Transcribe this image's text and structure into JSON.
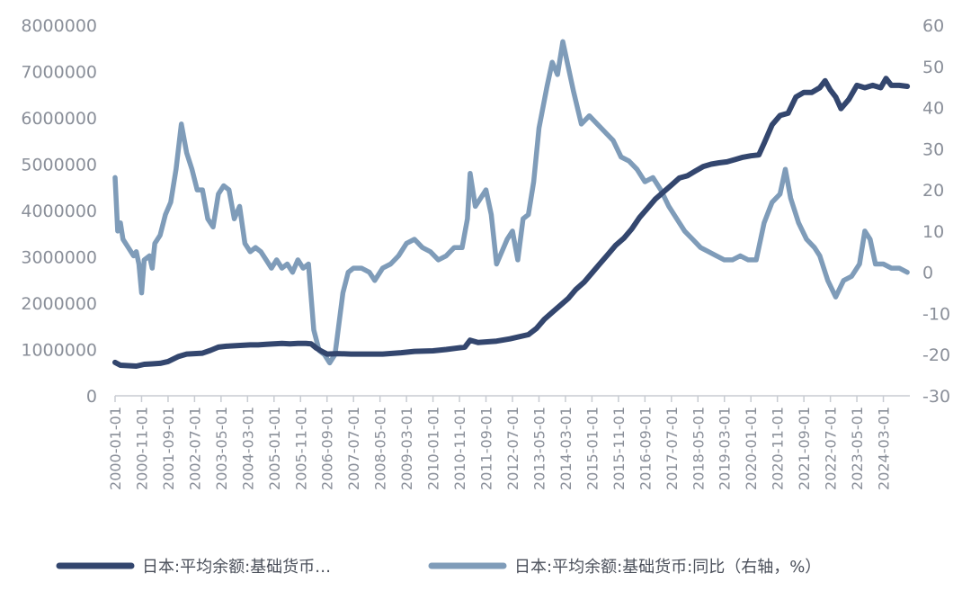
{
  "chart_data": {
    "type": "line",
    "title": "",
    "colors": {
      "series_left": "#33466e",
      "series_right": "#7f9cb9",
      "axis": "#c8ccd2",
      "text": "#8a8f99"
    },
    "left_axis": {
      "ylim": [
        0,
        8000000
      ],
      "ticks": [
        "0",
        "1000000",
        "2000000",
        "3000000",
        "4000000",
        "5000000",
        "6000000",
        "7000000",
        "8000000"
      ]
    },
    "right_axis": {
      "ylim": [
        -30,
        60
      ],
      "ticks": [
        "-30",
        "-20",
        "-10",
        "0",
        "10",
        "20",
        "30",
        "40",
        "50",
        "60"
      ]
    },
    "x_tick_labels": [
      "2000-01-01",
      "2000-11-01",
      "2001-09-01",
      "2002-07-01",
      "2003-05-01",
      "2004-03-01",
      "2005-01-01",
      "2005-11-01",
      "2006-09-01",
      "2007-07-01",
      "2008-05-01",
      "2009-03-01",
      "2010-01-01",
      "2010-11-01",
      "2011-09-01",
      "2012-07-01",
      "2013-05-01",
      "2014-03-01",
      "2015-01-01",
      "2015-11-01",
      "2016-09-01",
      "2017-07-01",
      "2018-05-01",
      "2019-03-01",
      "2020-01-01",
      "2020-11-01",
      "2021-09-01",
      "2022-07-01",
      "2023-05-01",
      "2024-03-01"
    ],
    "x_range": [
      "2000-01-01",
      "2025-01-01"
    ],
    "legend": {
      "placement": "bottom"
    },
    "series": [
      {
        "name": "日本:平均余额:基础货币…",
        "axis": "left",
        "points": [
          [
            "2000-01",
            720000
          ],
          [
            "2000-03",
            660000
          ],
          [
            "2000-06",
            650000
          ],
          [
            "2000-09",
            640000
          ],
          [
            "2000-12",
            680000
          ],
          [
            "2001-03",
            690000
          ],
          [
            "2001-06",
            700000
          ],
          [
            "2001-09",
            740000
          ],
          [
            "2002-01",
            850000
          ],
          [
            "2002-04",
            900000
          ],
          [
            "2002-07",
            910000
          ],
          [
            "2002-10",
            920000
          ],
          [
            "2003-01",
            980000
          ],
          [
            "2003-04",
            1050000
          ],
          [
            "2003-07",
            1070000
          ],
          [
            "2003-10",
            1080000
          ],
          [
            "2004-01",
            1090000
          ],
          [
            "2004-04",
            1100000
          ],
          [
            "2004-07",
            1100000
          ],
          [
            "2004-10",
            1110000
          ],
          [
            "2005-01",
            1120000
          ],
          [
            "2005-04",
            1130000
          ],
          [
            "2005-07",
            1120000
          ],
          [
            "2005-10",
            1130000
          ],
          [
            "2006-01",
            1130000
          ],
          [
            "2006-03",
            1120000
          ],
          [
            "2006-05",
            1030000
          ],
          [
            "2006-07",
            960000
          ],
          [
            "2006-09",
            900000
          ],
          [
            "2007-01",
            910000
          ],
          [
            "2007-06",
            900000
          ],
          [
            "2008-01",
            900000
          ],
          [
            "2008-06",
            900000
          ],
          [
            "2009-01",
            930000
          ],
          [
            "2009-06",
            960000
          ],
          [
            "2010-01",
            970000
          ],
          [
            "2010-06",
            1000000
          ],
          [
            "2011-01",
            1050000
          ],
          [
            "2011-03",
            1200000
          ],
          [
            "2011-06",
            1150000
          ],
          [
            "2012-01",
            1180000
          ],
          [
            "2012-06",
            1230000
          ],
          [
            "2013-01",
            1320000
          ],
          [
            "2013-04",
            1450000
          ],
          [
            "2013-07",
            1650000
          ],
          [
            "2013-10",
            1800000
          ],
          [
            "2014-01",
            1950000
          ],
          [
            "2014-04",
            2100000
          ],
          [
            "2014-07",
            2300000
          ],
          [
            "2014-10",
            2450000
          ],
          [
            "2015-01",
            2650000
          ],
          [
            "2015-04",
            2850000
          ],
          [
            "2015-07",
            3050000
          ],
          [
            "2015-10",
            3250000
          ],
          [
            "2016-01",
            3400000
          ],
          [
            "2016-04",
            3600000
          ],
          [
            "2016-07",
            3850000
          ],
          [
            "2016-10",
            4050000
          ],
          [
            "2017-01",
            4250000
          ],
          [
            "2017-04",
            4400000
          ],
          [
            "2017-07",
            4550000
          ],
          [
            "2017-10",
            4700000
          ],
          [
            "2018-01",
            4750000
          ],
          [
            "2018-04",
            4850000
          ],
          [
            "2018-07",
            4950000
          ],
          [
            "2018-10",
            5000000
          ],
          [
            "2019-01",
            5030000
          ],
          [
            "2019-04",
            5050000
          ],
          [
            "2019-07",
            5100000
          ],
          [
            "2019-10",
            5150000
          ],
          [
            "2020-01",
            5180000
          ],
          [
            "2020-04",
            5200000
          ],
          [
            "2020-06",
            5450000
          ],
          [
            "2020-09",
            5850000
          ],
          [
            "2020-12",
            6050000
          ],
          [
            "2021-03",
            6100000
          ],
          [
            "2021-06",
            6450000
          ],
          [
            "2021-09",
            6550000
          ],
          [
            "2021-12",
            6550000
          ],
          [
            "2022-03",
            6650000
          ],
          [
            "2022-05",
            6800000
          ],
          [
            "2022-07",
            6600000
          ],
          [
            "2022-09",
            6450000
          ],
          [
            "2022-11",
            6200000
          ],
          [
            "2023-02",
            6400000
          ],
          [
            "2023-05",
            6700000
          ],
          [
            "2023-08",
            6650000
          ],
          [
            "2023-11",
            6700000
          ],
          [
            "2024-02",
            6650000
          ],
          [
            "2024-04",
            6850000
          ],
          [
            "2024-06",
            6700000
          ],
          [
            "2024-09",
            6700000
          ],
          [
            "2024-12",
            6680000
          ]
        ]
      },
      {
        "name": "日本:平均余额:基础货币:同比（右轴，%）",
        "axis": "right",
        "points": [
          [
            "2000-01",
            23
          ],
          [
            "2000-02",
            10
          ],
          [
            "2000-03",
            12
          ],
          [
            "2000-04",
            8
          ],
          [
            "2000-06",
            6
          ],
          [
            "2000-08",
            4
          ],
          [
            "2000-09",
            5
          ],
          [
            "2000-10",
            2
          ],
          [
            "2000-11",
            -5
          ],
          [
            "2000-12",
            3
          ],
          [
            "2001-02",
            4
          ],
          [
            "2001-03",
            1
          ],
          [
            "2001-04",
            7
          ],
          [
            "2001-06",
            9
          ],
          [
            "2001-08",
            14
          ],
          [
            "2001-10",
            17
          ],
          [
            "2001-12",
            25
          ],
          [
            "2002-02",
            36
          ],
          [
            "2002-04",
            29
          ],
          [
            "2002-06",
            25
          ],
          [
            "2002-08",
            20
          ],
          [
            "2002-10",
            20
          ],
          [
            "2002-12",
            13
          ],
          [
            "2003-02",
            11
          ],
          [
            "2003-04",
            19
          ],
          [
            "2003-06",
            21
          ],
          [
            "2003-08",
            20
          ],
          [
            "2003-10",
            13
          ],
          [
            "2003-12",
            16
          ],
          [
            "2004-02",
            7
          ],
          [
            "2004-04",
            5
          ],
          [
            "2004-06",
            6
          ],
          [
            "2004-08",
            5
          ],
          [
            "2004-10",
            3
          ],
          [
            "2004-12",
            1
          ],
          [
            "2005-02",
            3
          ],
          [
            "2005-04",
            1
          ],
          [
            "2005-06",
            2
          ],
          [
            "2005-08",
            0
          ],
          [
            "2005-10",
            3
          ],
          [
            "2005-12",
            1
          ],
          [
            "2006-02",
            2
          ],
          [
            "2006-04",
            -14
          ],
          [
            "2006-06",
            -19
          ],
          [
            "2006-08",
            -20
          ],
          [
            "2006-10",
            -22
          ],
          [
            "2006-12",
            -20
          ],
          [
            "2007-03",
            -5
          ],
          [
            "2007-05",
            0
          ],
          [
            "2007-07",
            1
          ],
          [
            "2007-10",
            1
          ],
          [
            "2008-01",
            0
          ],
          [
            "2008-03",
            -2
          ],
          [
            "2008-06",
            1
          ],
          [
            "2008-09",
            2
          ],
          [
            "2008-12",
            4
          ],
          [
            "2009-03",
            7
          ],
          [
            "2009-06",
            8
          ],
          [
            "2009-09",
            6
          ],
          [
            "2009-12",
            5
          ],
          [
            "2010-03",
            3
          ],
          [
            "2010-06",
            4
          ],
          [
            "2010-09",
            6
          ],
          [
            "2010-12",
            6
          ],
          [
            "2011-02",
            13
          ],
          [
            "2011-03",
            24
          ],
          [
            "2011-05",
            16
          ],
          [
            "2011-07",
            18
          ],
          [
            "2011-09",
            20
          ],
          [
            "2011-11",
            14
          ],
          [
            "2012-01",
            2
          ],
          [
            "2012-03",
            5
          ],
          [
            "2012-05",
            8
          ],
          [
            "2012-07",
            10
          ],
          [
            "2012-09",
            3
          ],
          [
            "2012-11",
            13
          ],
          [
            "2013-01",
            14
          ],
          [
            "2013-03",
            22
          ],
          [
            "2013-05",
            35
          ],
          [
            "2013-08",
            45
          ],
          [
            "2013-10",
            51
          ],
          [
            "2013-12",
            48
          ],
          [
            "2014-02",
            56
          ],
          [
            "2014-04",
            50
          ],
          [
            "2014-06",
            44
          ],
          [
            "2014-09",
            36
          ],
          [
            "2014-12",
            38
          ],
          [
            "2015-03",
            36
          ],
          [
            "2015-06",
            34
          ],
          [
            "2015-09",
            32
          ],
          [
            "2015-12",
            28
          ],
          [
            "2016-03",
            27
          ],
          [
            "2016-06",
            25
          ],
          [
            "2016-09",
            22
          ],
          [
            "2016-12",
            23
          ],
          [
            "2017-03",
            20
          ],
          [
            "2017-06",
            16
          ],
          [
            "2017-09",
            13
          ],
          [
            "2017-12",
            10
          ],
          [
            "2018-03",
            8
          ],
          [
            "2018-06",
            6
          ],
          [
            "2018-09",
            5
          ],
          [
            "2018-12",
            4
          ],
          [
            "2019-03",
            3
          ],
          [
            "2019-06",
            3
          ],
          [
            "2019-09",
            4
          ],
          [
            "2019-12",
            3
          ],
          [
            "2020-03",
            3
          ],
          [
            "2020-06",
            12
          ],
          [
            "2020-09",
            17
          ],
          [
            "2020-12",
            19
          ],
          [
            "2021-02",
            25
          ],
          [
            "2021-04",
            18
          ],
          [
            "2021-07",
            12
          ],
          [
            "2021-10",
            8
          ],
          [
            "2022-01",
            6
          ],
          [
            "2022-03",
            4
          ],
          [
            "2022-06",
            -2
          ],
          [
            "2022-09",
            -6
          ],
          [
            "2022-12",
            -2
          ],
          [
            "2023-03",
            -1
          ],
          [
            "2023-06",
            2
          ],
          [
            "2023-08",
            10
          ],
          [
            "2023-10",
            8
          ],
          [
            "2023-12",
            2
          ],
          [
            "2024-03",
            2
          ],
          [
            "2024-06",
            1
          ],
          [
            "2024-09",
            1
          ],
          [
            "2024-12",
            0
          ]
        ]
      }
    ]
  }
}
